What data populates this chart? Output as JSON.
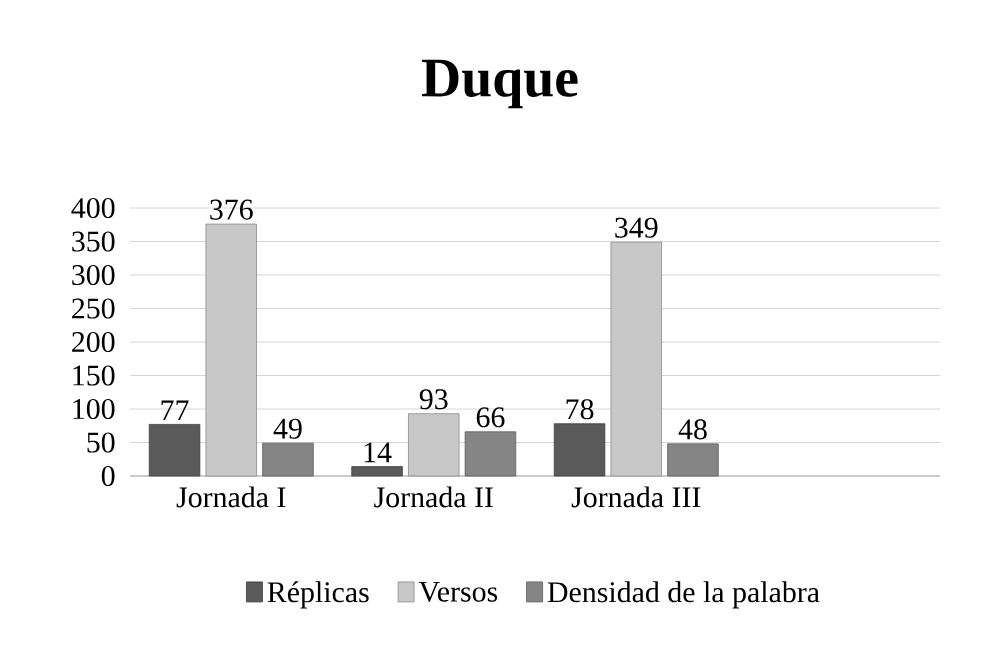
{
  "chart_data": {
    "type": "bar",
    "title": "Duque",
    "categories": [
      "Jornada I",
      "Jornada II",
      "Jornada III",
      null
    ],
    "series": [
      {
        "name": "Réplicas",
        "color": "#5a5a5a",
        "values": [
          77,
          14,
          78,
          null
        ]
      },
      {
        "name": "Versos",
        "color": "#c8c8c8",
        "values": [
          376,
          93,
          349,
          null
        ]
      },
      {
        "name": "Densidad de la palabra",
        "color": "#858585",
        "values": [
          49,
          66,
          48,
          null
        ]
      }
    ],
    "ylim": [
      0,
      400
    ],
    "yticks": [
      0,
      50,
      100,
      150,
      200,
      250,
      300,
      350,
      400
    ],
    "grid": "y",
    "legend": "bottom",
    "data_labels": true
  }
}
